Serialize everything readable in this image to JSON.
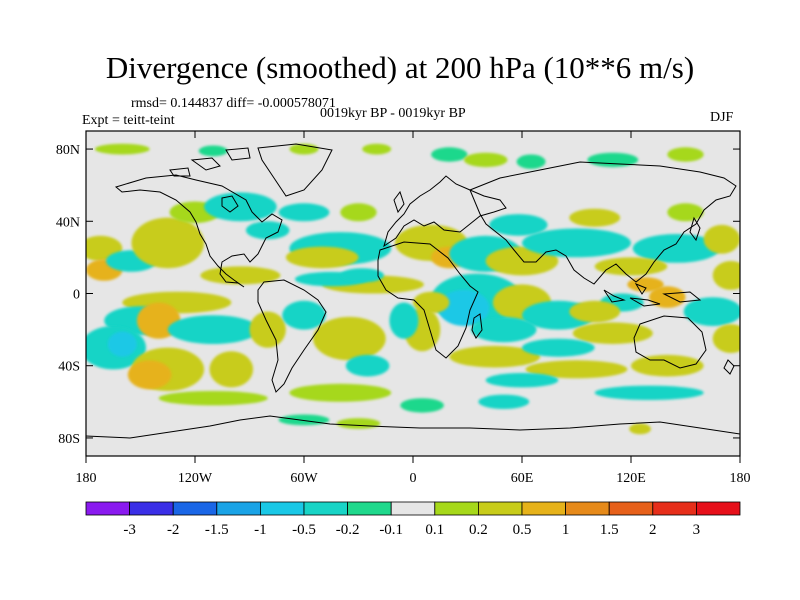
{
  "chart_data": {
    "type": "heatmap",
    "title": "Divergence (smoothed) at 200 hPa (10**6 m/s)",
    "stats_label": "rmsd= 0.144837 diff= -0.000578071",
    "period_label": "0019kyr BP - 0019kyr BP",
    "experiment_label": "Expt = teitt-teint",
    "season_label": "DJF",
    "projection": "cylindrical equidistant",
    "xlim": [
      -180,
      180
    ],
    "ylim": [
      -90,
      90
    ],
    "x_ticks": [
      {
        "value": -180,
        "label": "180"
      },
      {
        "value": -120,
        "label": "120W"
      },
      {
        "value": -60,
        "label": "60W"
      },
      {
        "value": 0,
        "label": "0"
      },
      {
        "value": 60,
        "label": "60E"
      },
      {
        "value": 120,
        "label": "120E"
      },
      {
        "value": 180,
        "label": "180"
      }
    ],
    "y_ticks": [
      {
        "value": 80,
        "label": "80N"
      },
      {
        "value": 40,
        "label": "40N"
      },
      {
        "value": 0,
        "label": "0"
      },
      {
        "value": -40,
        "label": "40S"
      },
      {
        "value": -80,
        "label": "80S"
      }
    ],
    "colorbar": {
      "levels": [
        "-3",
        "-2",
        "-1.5",
        "-1",
        "-0.5",
        "-0.2",
        "-0.1",
        "0.1",
        "0.2",
        "0.5",
        "1",
        "1.5",
        "2",
        "3"
      ],
      "colors": [
        "#8a1aef",
        "#3a2ee6",
        "#1a66e6",
        "#1aa3e6",
        "#1ac8e6",
        "#18d4c6",
        "#1fd88c",
        "#e6e6e6",
        "#a6d81a",
        "#c8cc1a",
        "#e6b21a",
        "#e68a1a",
        "#e6601a",
        "#e62e1a",
        "#e6101a"
      ]
    },
    "blobs": [
      {
        "lon": -160,
        "lat": 80,
        "rx": 15,
        "ry": 3,
        "v": 0.2
      },
      {
        "lon": -110,
        "lat": 79,
        "rx": 8,
        "ry": 3,
        "v": -0.15
      },
      {
        "lon": -60,
        "lat": 80,
        "rx": 8,
        "ry": 3,
        "v": 0.15
      },
      {
        "lon": -20,
        "lat": 80,
        "rx": 8,
        "ry": 3,
        "v": 0.15
      },
      {
        "lon": 20,
        "lat": 77,
        "rx": 10,
        "ry": 4,
        "v": -0.15
      },
      {
        "lon": 40,
        "lat": 74,
        "rx": 12,
        "ry": 4,
        "v": 0.2
      },
      {
        "lon": 65,
        "lat": 73,
        "rx": 8,
        "ry": 4,
        "v": -0.15
      },
      {
        "lon": 110,
        "lat": 74,
        "rx": 14,
        "ry": 4,
        "v": -0.15
      },
      {
        "lon": 150,
        "lat": 77,
        "rx": 10,
        "ry": 4,
        "v": 0.2
      },
      {
        "lon": -172,
        "lat": 25,
        "rx": 12,
        "ry": 7,
        "v": 0.3
      },
      {
        "lon": -170,
        "lat": 13,
        "rx": 10,
        "ry": 6,
        "v": 0.7
      },
      {
        "lon": -155,
        "lat": 18,
        "rx": 14,
        "ry": 6,
        "v": -0.2
      },
      {
        "lon": -135,
        "lat": 28,
        "rx": 20,
        "ry": 14,
        "v": 0.25
      },
      {
        "lon": -120,
        "lat": 45,
        "rx": 14,
        "ry": 6,
        "v": 0.2
      },
      {
        "lon": -95,
        "lat": 10,
        "rx": 22,
        "ry": 5,
        "v": 0.25
      },
      {
        "lon": -80,
        "lat": 35,
        "rx": 12,
        "ry": 5,
        "v": -0.25
      },
      {
        "lon": -95,
        "lat": 48,
        "rx": 20,
        "ry": 8,
        "v": -0.2
      },
      {
        "lon": -60,
        "lat": 45,
        "rx": 14,
        "ry": 5,
        "v": -0.25
      },
      {
        "lon": -30,
        "lat": 45,
        "rx": 10,
        "ry": 5,
        "v": 0.2
      },
      {
        "lon": -40,
        "lat": 25,
        "rx": 28,
        "ry": 9,
        "v": -0.3
      },
      {
        "lon": -50,
        "lat": 20,
        "rx": 20,
        "ry": 6,
        "v": 0.25
      },
      {
        "lon": -22,
        "lat": 5,
        "rx": 28,
        "ry": 5,
        "v": 0.22
      },
      {
        "lon": -45,
        "lat": 8,
        "rx": 20,
        "ry": 4,
        "v": -0.2
      },
      {
        "lon": -28,
        "lat": 10,
        "rx": 12,
        "ry": 4,
        "v": -0.3
      },
      {
        "lon": 10,
        "lat": 28,
        "rx": 20,
        "ry": 10,
        "v": 0.35
      },
      {
        "lon": 20,
        "lat": 20,
        "rx": 10,
        "ry": 6,
        "v": 0.7
      },
      {
        "lon": 40,
        "lat": 22,
        "rx": 20,
        "ry": 10,
        "v": -0.35
      },
      {
        "lon": 60,
        "lat": 18,
        "rx": 20,
        "ry": 8,
        "v": 0.3
      },
      {
        "lon": 58,
        "lat": 38,
        "rx": 16,
        "ry": 6,
        "v": -0.25
      },
      {
        "lon": 90,
        "lat": 28,
        "rx": 30,
        "ry": 8,
        "v": -0.3
      },
      {
        "lon": 100,
        "lat": 42,
        "rx": 14,
        "ry": 5,
        "v": 0.3
      },
      {
        "lon": 145,
        "lat": 25,
        "rx": 24,
        "ry": 8,
        "v": -0.25
      },
      {
        "lon": 150,
        "lat": 45,
        "rx": 10,
        "ry": 5,
        "v": 0.2
      },
      {
        "lon": 170,
        "lat": 30,
        "rx": 10,
        "ry": 8,
        "v": 0.3
      },
      {
        "lon": 175,
        "lat": 10,
        "rx": 10,
        "ry": 8,
        "v": 0.3
      },
      {
        "lon": 120,
        "lat": 15,
        "rx": 20,
        "ry": 5,
        "v": 0.3
      },
      {
        "lon": 128,
        "lat": 5,
        "rx": 10,
        "ry": 4,
        "v": 0.6
      },
      {
        "lon": 115,
        "lat": -5,
        "rx": 12,
        "ry": 5,
        "v": -0.35
      },
      {
        "lon": 140,
        "lat": -2,
        "rx": 10,
        "ry": 6,
        "v": 0.6
      },
      {
        "lon": 165,
        "lat": -10,
        "rx": 16,
        "ry": 8,
        "v": -0.3
      },
      {
        "lon": 175,
        "lat": -25,
        "rx": 10,
        "ry": 8,
        "v": 0.25
      },
      {
        "lon": 35,
        "lat": -3,
        "rx": 25,
        "ry": 14,
        "v": -0.45
      },
      {
        "lon": 28,
        "lat": -8,
        "rx": 14,
        "ry": 10,
        "v": -0.8
      },
      {
        "lon": 10,
        "lat": -5,
        "rx": 10,
        "ry": 6,
        "v": 0.3
      },
      {
        "lon": 5,
        "lat": -20,
        "rx": 10,
        "ry": 12,
        "v": 0.3
      },
      {
        "lon": -5,
        "lat": -15,
        "rx": 8,
        "ry": 10,
        "v": -0.3
      },
      {
        "lon": 60,
        "lat": -5,
        "rx": 16,
        "ry": 10,
        "v": 0.3
      },
      {
        "lon": 80,
        "lat": -12,
        "rx": 20,
        "ry": 8,
        "v": -0.35
      },
      {
        "lon": 100,
        "lat": -10,
        "rx": 14,
        "ry": 6,
        "v": 0.25
      },
      {
        "lon": 50,
        "lat": -20,
        "rx": 18,
        "ry": 7,
        "v": -0.3
      },
      {
        "lon": 110,
        "lat": -22,
        "rx": 22,
        "ry": 6,
        "v": 0.3
      },
      {
        "lon": 45,
        "lat": -35,
        "rx": 25,
        "ry": 6,
        "v": 0.35
      },
      {
        "lon": 80,
        "lat": -30,
        "rx": 20,
        "ry": 5,
        "v": -0.25
      },
      {
        "lon": 90,
        "lat": -42,
        "rx": 28,
        "ry": 5,
        "v": 0.3
      },
      {
        "lon": 140,
        "lat": -40,
        "rx": 20,
        "ry": 6,
        "v": 0.3
      },
      {
        "lon": 60,
        "lat": -48,
        "rx": 20,
        "ry": 4,
        "v": -0.2
      },
      {
        "lon": 130,
        "lat": -55,
        "rx": 30,
        "ry": 4,
        "v": -0.2
      },
      {
        "lon": 125,
        "lat": -75,
        "rx": 6,
        "ry": 3,
        "v": 0.3
      },
      {
        "lon": -130,
        "lat": -5,
        "rx": 30,
        "ry": 6,
        "v": 0.25
      },
      {
        "lon": -150,
        "lat": -15,
        "rx": 20,
        "ry": 8,
        "v": -0.2
      },
      {
        "lon": -140,
        "lat": -15,
        "rx": 12,
        "ry": 10,
        "v": 0.6
      },
      {
        "lon": -110,
        "lat": -20,
        "rx": 25,
        "ry": 8,
        "v": -0.25
      },
      {
        "lon": -165,
        "lat": -30,
        "rx": 18,
        "ry": 12,
        "v": -0.3
      },
      {
        "lon": -160,
        "lat": -28,
        "rx": 8,
        "ry": 7,
        "v": -0.7
      },
      {
        "lon": -135,
        "lat": -42,
        "rx": 20,
        "ry": 12,
        "v": 0.3
      },
      {
        "lon": -145,
        "lat": -45,
        "rx": 12,
        "ry": 8,
        "v": 0.6
      },
      {
        "lon": -100,
        "lat": -42,
        "rx": 12,
        "ry": 10,
        "v": 0.25
      },
      {
        "lon": -80,
        "lat": -20,
        "rx": 10,
        "ry": 10,
        "v": 0.3
      },
      {
        "lon": -60,
        "lat": -12,
        "rx": 12,
        "ry": 8,
        "v": -0.3
      },
      {
        "lon": -35,
        "lat": -25,
        "rx": 20,
        "ry": 12,
        "v": 0.3
      },
      {
        "lon": -25,
        "lat": -40,
        "rx": 12,
        "ry": 6,
        "v": -0.25
      },
      {
        "lon": -40,
        "lat": -55,
        "rx": 28,
        "ry": 5,
        "v": 0.2
      },
      {
        "lon": -110,
        "lat": -58,
        "rx": 30,
        "ry": 4,
        "v": 0.2
      },
      {
        "lon": -60,
        "lat": -70,
        "rx": 14,
        "ry": 3,
        "v": -0.15
      },
      {
        "lon": -30,
        "lat": -72,
        "rx": 12,
        "ry": 3,
        "v": 0.15
      },
      {
        "lon": 50,
        "lat": -60,
        "rx": 14,
        "ry": 4,
        "v": -0.2
      },
      {
        "lon": 5,
        "lat": -62,
        "rx": 12,
        "ry": 4,
        "v": -0.15
      }
    ]
  }
}
